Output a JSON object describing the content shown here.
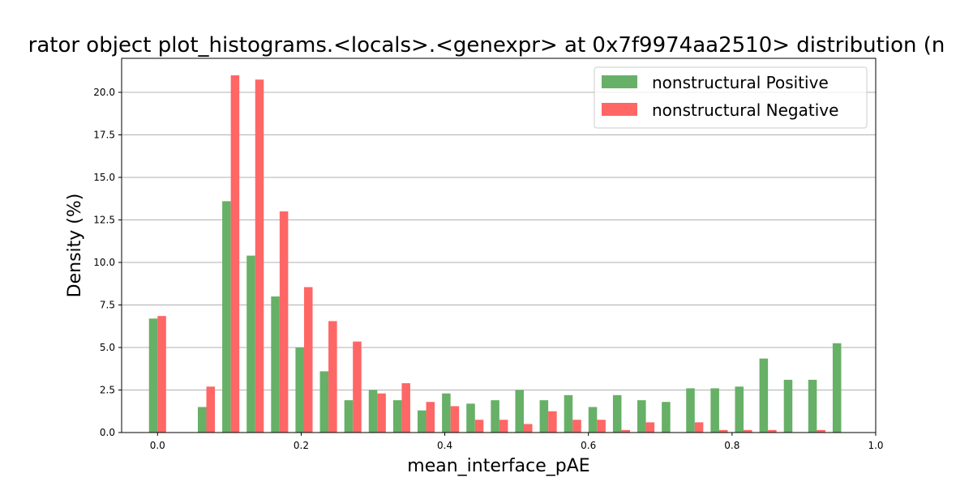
{
  "chart_data": {
    "type": "bar",
    "title": "rator object plot_histograms.<locals>.<genexpr> at 0x7f9974aa2510> distribution (n",
    "xlabel": "mean_interface_pAE",
    "ylabel": "Density (%)",
    "xlim": [
      -0.05,
      1.0
    ],
    "ylim": [
      0,
      22
    ],
    "xticks": [
      0.0,
      0.2,
      0.4,
      0.6,
      0.8,
      1.0
    ],
    "xtick_labels": [
      "0.0",
      "0.2",
      "0.4",
      "0.6",
      "0.8",
      "1.0"
    ],
    "yticks": [
      0.0,
      2.5,
      5.0,
      7.5,
      10.0,
      12.5,
      15.0,
      17.5,
      20.0
    ],
    "ytick_labels": [
      "0.0",
      "2.5",
      "5.0",
      "7.5",
      "10.0",
      "12.5",
      "15.0",
      "17.5",
      "20.0"
    ],
    "grid": "y-major",
    "legend_position": "upper right",
    "bin_width": 0.034,
    "x": [
      0.0,
      0.034,
      0.068,
      0.102,
      0.136,
      0.17,
      0.204,
      0.238,
      0.272,
      0.306,
      0.34,
      0.374,
      0.408,
      0.442,
      0.476,
      0.51,
      0.544,
      0.578,
      0.612,
      0.646,
      0.68,
      0.714,
      0.748,
      0.782,
      0.816,
      0.85,
      0.884,
      0.918,
      0.952
    ],
    "series": [
      {
        "name": "nonstructural Positive",
        "color": "#67b067",
        "values": [
          6.7,
          0,
          1.5,
          13.6,
          10.4,
          8.0,
          5.0,
          3.6,
          1.9,
          2.5,
          1.9,
          1.3,
          2.3,
          1.7,
          1.9,
          2.5,
          1.9,
          2.2,
          1.5,
          2.2,
          1.9,
          1.8,
          2.6,
          2.6,
          2.7,
          4.35,
          3.1,
          3.1,
          5.25
        ]
      },
      {
        "name": "nonstructural Negative",
        "color": "#ff6666",
        "values": [
          6.85,
          0,
          2.7,
          21.0,
          20.75,
          13.0,
          8.55,
          6.55,
          5.35,
          2.3,
          2.9,
          1.8,
          1.55,
          0.75,
          0.75,
          0.5,
          1.25,
          0.75,
          0.75,
          0.15,
          0.6,
          0,
          0.6,
          0.15,
          0.15,
          0.15,
          0,
          0.15,
          0
        ]
      }
    ]
  }
}
